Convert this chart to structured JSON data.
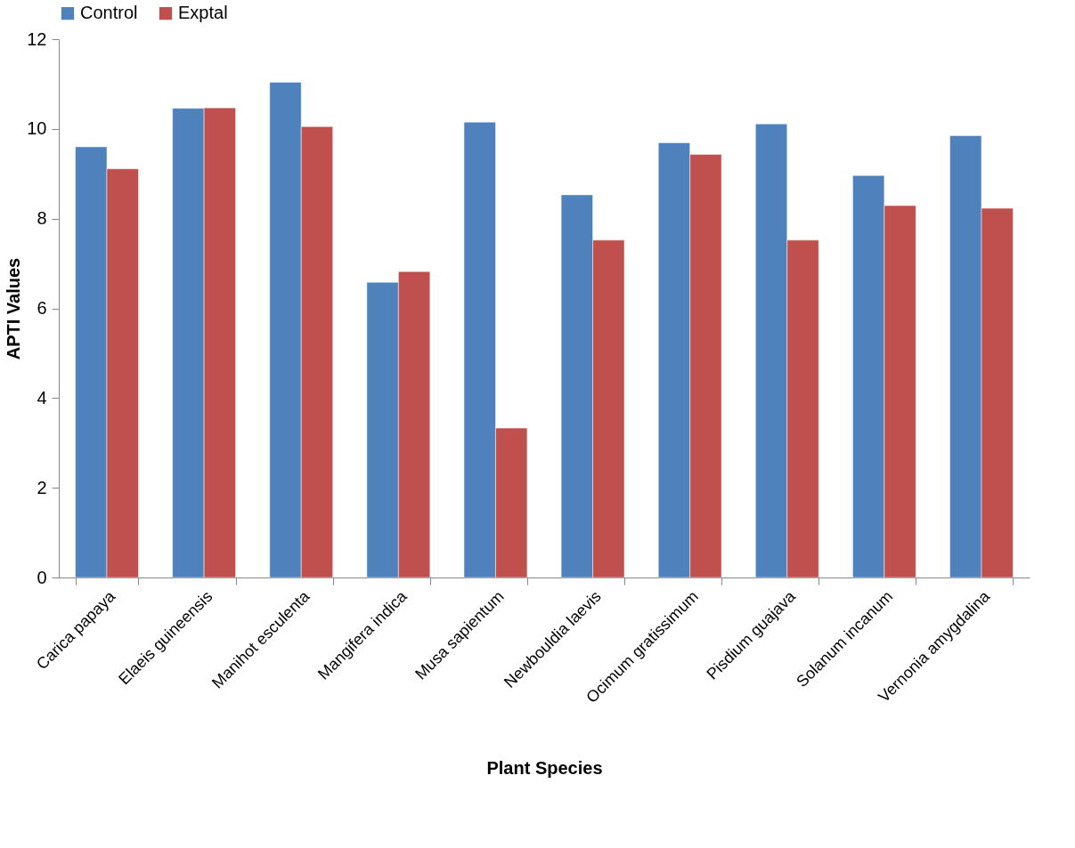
{
  "chart_data": {
    "type": "bar",
    "xlabel": "Plant Species",
    "ylabel": "APTI  Values",
    "categories": [
      "Carica papaya",
      "Elaeis guineensis",
      "Manihot esculenta",
      "Mangifera indica",
      "Musa sapientum",
      "Newbouldia laevis",
      "Ocimum gratissimum",
      "Pisdium guajava",
      "Solanum incanum",
      "Vernonia amygdalina"
    ],
    "series": [
      {
        "name": "Control",
        "color": "#4f81bd",
        "values": [
          9.6,
          10.46,
          11.04,
          6.58,
          10.15,
          8.53,
          9.69,
          10.11,
          8.96,
          9.85
        ]
      },
      {
        "name": "Exptal",
        "color": "#c0504d",
        "values": [
          9.11,
          10.47,
          10.05,
          6.82,
          3.33,
          7.52,
          9.43,
          7.52,
          8.29,
          8.23
        ]
      }
    ],
    "ylim": [
      0,
      12
    ],
    "yticks": [
      0,
      2,
      4,
      6,
      8,
      10,
      12
    ],
    "grid": false,
    "legend": "top"
  }
}
